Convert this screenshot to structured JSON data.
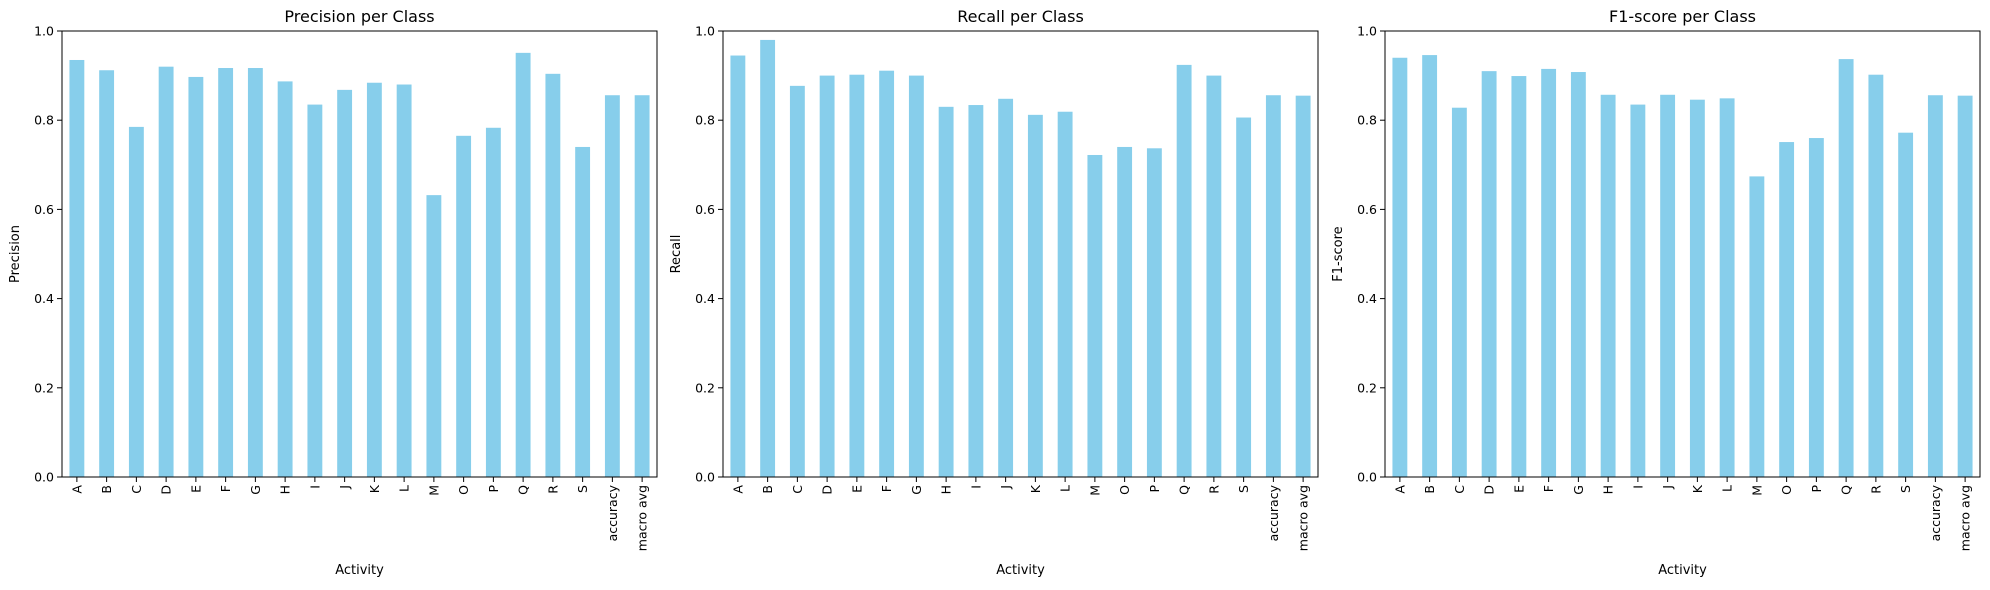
{
  "chart_data": [
    {
      "type": "bar",
      "title": "Precision per Class",
      "xlabel": "Activity",
      "ylabel": "Precision",
      "ylim": [
        0,
        1.0
      ],
      "yticks": [
        "0.0",
        "0.2",
        "0.4",
        "0.6",
        "0.8",
        "1.0"
      ],
      "categories": [
        "A",
        "B",
        "C",
        "D",
        "E",
        "F",
        "G",
        "H",
        "I",
        "J",
        "K",
        "L",
        "M",
        "O",
        "P",
        "Q",
        "R",
        "S",
        "accuracy",
        "macro avg"
      ],
      "values": [
        0.935,
        0.912,
        0.785,
        0.92,
        0.897,
        0.917,
        0.917,
        0.887,
        0.835,
        0.868,
        0.884,
        0.88,
        0.632,
        0.765,
        0.783,
        0.951,
        0.904,
        0.74,
        0.856,
        0.856
      ],
      "color": "#87ceeb"
    },
    {
      "type": "bar",
      "title": "Recall per Class",
      "xlabel": "Activity",
      "ylabel": "Recall",
      "ylim": [
        0,
        1.0
      ],
      "yticks": [
        "0.0",
        "0.2",
        "0.4",
        "0.6",
        "0.8",
        "1.0"
      ],
      "categories": [
        "A",
        "B",
        "C",
        "D",
        "E",
        "F",
        "G",
        "H",
        "I",
        "J",
        "K",
        "L",
        "M",
        "O",
        "P",
        "Q",
        "R",
        "S",
        "accuracy",
        "macro avg"
      ],
      "values": [
        0.945,
        0.98,
        0.877,
        0.9,
        0.902,
        0.911,
        0.9,
        0.83,
        0.834,
        0.848,
        0.812,
        0.819,
        0.722,
        0.74,
        0.737,
        0.924,
        0.9,
        0.806,
        0.856,
        0.855
      ],
      "color": "#87ceeb"
    },
    {
      "type": "bar",
      "title": "F1-score per Class",
      "xlabel": "Activity",
      "ylabel": "F1-score",
      "ylim": [
        0,
        1.0
      ],
      "yticks": [
        "0.0",
        "0.2",
        "0.4",
        "0.6",
        "0.8",
        "1.0"
      ],
      "categories": [
        "A",
        "B",
        "C",
        "D",
        "E",
        "F",
        "G",
        "H",
        "I",
        "J",
        "K",
        "L",
        "M",
        "O",
        "P",
        "Q",
        "R",
        "S",
        "accuracy",
        "macro avg"
      ],
      "values": [
        0.94,
        0.946,
        0.828,
        0.91,
        0.899,
        0.915,
        0.908,
        0.857,
        0.835,
        0.857,
        0.846,
        0.849,
        0.674,
        0.751,
        0.76,
        0.937,
        0.902,
        0.772,
        0.856,
        0.855
      ],
      "color": "#87ceeb"
    }
  ]
}
